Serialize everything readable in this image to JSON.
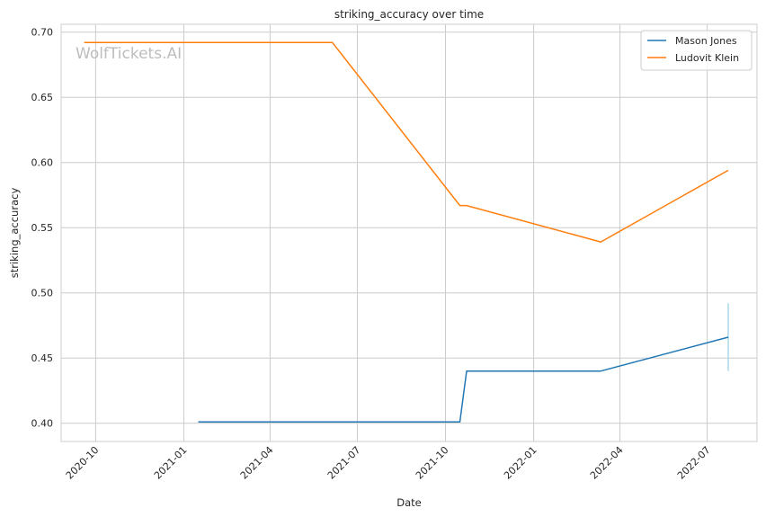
{
  "chart_data": {
    "type": "line",
    "title": "striking_accuracy over time",
    "xlabel": "Date",
    "ylabel": "striking_accuracy",
    "watermark": "WolfTickets.AI",
    "xlim": [
      "2020-08-26",
      "2022-08-22"
    ],
    "ylim": [
      0.386,
      0.706
    ],
    "x_ticks": [
      "2020-10-01",
      "2021-01-01",
      "2021-04-01",
      "2021-07-01",
      "2021-10-01",
      "2022-01-01",
      "2022-04-01",
      "2022-07-01"
    ],
    "x_tick_labels": [
      "2020-10",
      "2021-01",
      "2021-04",
      "2021-07",
      "2021-10",
      "2022-01",
      "2022-04",
      "2022-07"
    ],
    "y_ticks": [
      0.4,
      0.45,
      0.5,
      0.55,
      0.6,
      0.65,
      0.7
    ],
    "y_tick_labels": [
      "0.40",
      "0.45",
      "0.50",
      "0.55",
      "0.60",
      "0.65",
      "0.70"
    ],
    "grid": true,
    "legend_position": "top-right",
    "series": [
      {
        "name": "Mason Jones",
        "color": "#1f77b4",
        "x": [
          "2021-01-16",
          "2021-10-16",
          "2021-10-23",
          "2022-03-12",
          "2022-07-23"
        ],
        "y": [
          0.401,
          0.401,
          0.44,
          0.44,
          0.466
        ]
      },
      {
        "name": "Ludovit Klein",
        "color": "#ff7f0e",
        "x": [
          "2020-09-19",
          "2021-06-05",
          "2021-10-16",
          "2021-10-23",
          "2022-03-12",
          "2022-07-23"
        ],
        "y": [
          0.692,
          0.692,
          0.567,
          0.567,
          0.539,
          0.594
        ]
      }
    ],
    "error_band": {
      "series": "Mason Jones",
      "color": "#a6d7e8",
      "x": "2022-07-23",
      "y_low": 0.44,
      "y_high": 0.492
    }
  }
}
